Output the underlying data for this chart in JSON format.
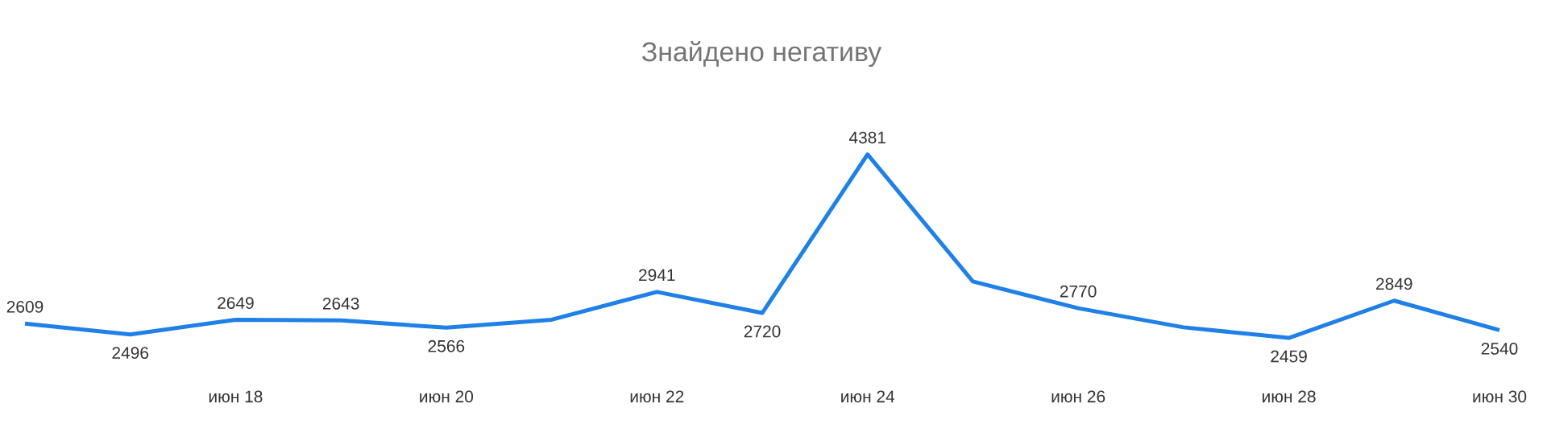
{
  "chart_data": {
    "type": "line",
    "title": "Знайдено негативу",
    "categories": [
      null,
      null,
      "июн 18",
      null,
      "июн 20",
      null,
      "июн 22",
      null,
      "июн 24",
      null,
      "июн 26",
      null,
      "июн 28",
      null,
      "июн 30"
    ],
    "values": [
      2609,
      2496,
      2649,
      2643,
      2566,
      2650,
      2941,
      2720,
      4381,
      3050,
      2770,
      2570,
      2459,
      2849,
      2540
    ],
    "value_labels": [
      "2609",
      "2496",
      "2649",
      "2643",
      "2566",
      null,
      "2941",
      "2720",
      "4381",
      null,
      "2770",
      null,
      "2459",
      "2849",
      "2540"
    ],
    "color": "#1f80e8"
  }
}
